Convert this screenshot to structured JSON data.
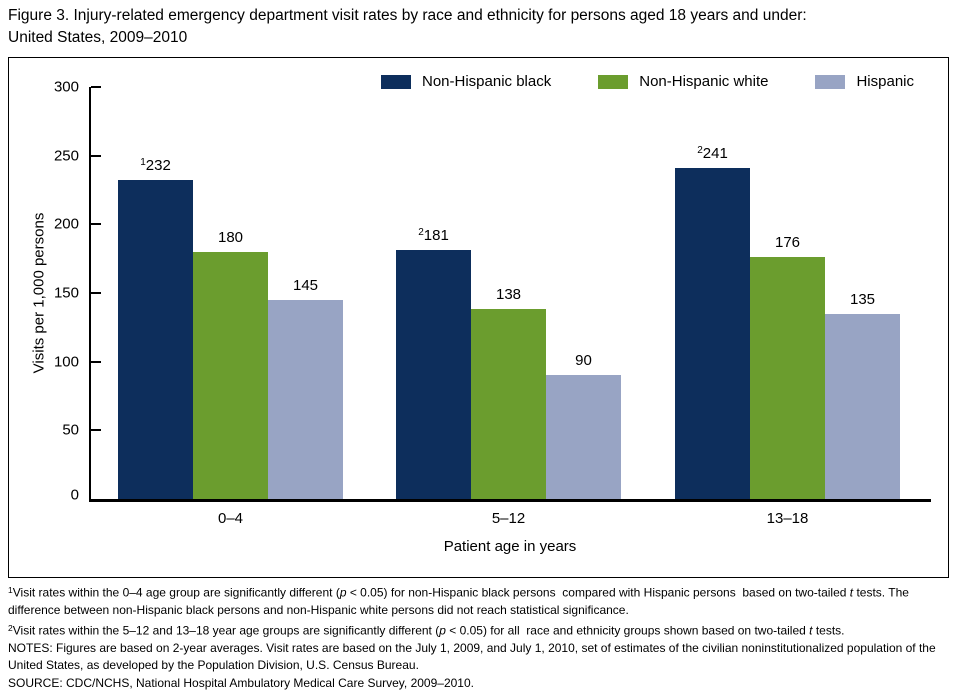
{
  "figure": {
    "title_lines": [
      "Figure 3. Injury-related emergency department visit rates by race and ethnicity for persons aged 18 years and under:",
      "United States, 2009–2010"
    ]
  },
  "chart_data": {
    "type": "bar",
    "title": "Injury-related emergency department visit rates by race and ethnicity for persons aged 18 years and under: United States, 2009–2010",
    "categories": [
      "0–4",
      "5–12",
      "13–18"
    ],
    "series": [
      {
        "name": "Non-Hispanic black",
        "color": "#0d2e5c",
        "values": [
          232,
          181,
          241
        ],
        "value_prefix_sups": [
          "1",
          "2",
          "2"
        ]
      },
      {
        "name": "Non-Hispanic white",
        "color": "#6b9d2e",
        "values": [
          180,
          138,
          176
        ],
        "value_prefix_sups": [
          null,
          null,
          null
        ]
      },
      {
        "name": "Hispanic",
        "color": "#98a4c4",
        "values": [
          145,
          90,
          135
        ],
        "value_prefix_sups": [
          null,
          null,
          null
        ]
      }
    ],
    "xlabel": "Patient age in years",
    "ylabel": "Visits per 1,000 persons",
    "ylim": [
      0,
      300
    ],
    "yticks": [
      0,
      50,
      100,
      150,
      200,
      250,
      300
    ],
    "grid": false,
    "legend_position": "top-center-right",
    "axis_color": "#000000",
    "frame_color": "#000000"
  },
  "footnotes": [
    [
      {
        "sup": "1"
      },
      {
        "t": "Visit rates within the 0–4 age group are significantly different ("
      },
      {
        "t": "p",
        "i": true
      },
      {
        "t": " < 0.05) for non-Hispanic black persons  compared with Hispanic persons  based on two-tailed "
      },
      {
        "t": "t",
        "i": true
      },
      {
        "t": " tests. The difference between non-Hispanic black persons and non-Hispanic white persons did not reach statistical significance."
      }
    ],
    [
      {
        "sup": "2"
      },
      {
        "t": "Visit rates within the 5–12 and 13–18 year age groups are significantly different ("
      },
      {
        "t": "p",
        "i": true
      },
      {
        "t": " < 0.05) for all  race and ethnicity groups shown based on two-tailed "
      },
      {
        "t": "t",
        "i": true
      },
      {
        "t": " tests."
      }
    ],
    [
      {
        "t": "NOTES: Figures are based on 2-year averages. Visit rates are based on the July 1, 2009, and July 1, 2010, set of estimates of the civilian noninstitutionalized population of the United States, as developed by the Population Division, U.S. Census Bureau."
      }
    ],
    [
      {
        "t": "SOURCE: CDC/NCHS, National Hospital Ambulatory Medical Care Survey, 2009–2010."
      }
    ]
  ]
}
